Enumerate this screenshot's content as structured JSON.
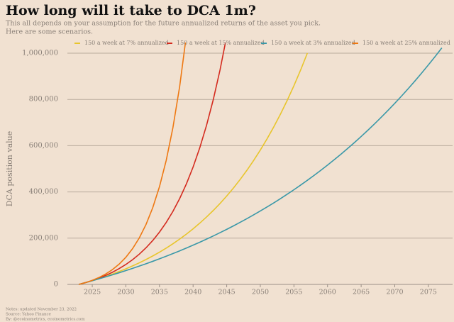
{
  "chart_data": {
    "type": "line",
    "title": "How long will it take to DCA 1m?",
    "subtitle": [
      "This all depends on your assumption for the future annualized returns of the asset you pick.",
      "Here are some scenarios."
    ],
    "y_label": "DCA position value",
    "notes": [
      "Notes: updated November 23, 2022",
      "Source: Yahoo Finance",
      "By: @ecoinometrics, ecoinometrics.com"
    ],
    "x": [
      2023,
      2024,
      2025,
      2026,
      2027,
      2028,
      2029,
      2030,
      2031,
      2032,
      2033,
      2034,
      2035,
      2036,
      2037,
      2038,
      2039,
      2040,
      2041,
      2042,
      2043,
      2044,
      2045,
      2046,
      2047,
      2048,
      2049,
      2050,
      2051,
      2052,
      2053,
      2054,
      2055,
      2056,
      2057,
      2058,
      2059,
      2060,
      2061,
      2062,
      2063,
      2064,
      2065,
      2066,
      2067,
      2068,
      2069,
      2070,
      2071,
      2072,
      2073,
      2074,
      2075,
      2076,
      2077
    ],
    "series": [
      {
        "name": "150 a week at 7% annualized",
        "color": "#e8c52c",
        "values": [
          0,
          7800,
          16146,
          25076,
          34632,
          44856,
          55796,
          67502,
          80028,
          93428,
          107768,
          123111,
          139528,
          157095,
          175891,
          195999,
          217528,
          240558,
          265201,
          291571,
          319784,
          349970,
          382269,
          416825,
          453818,
          493378,
          535717,
          581024,
          629460,
          681326,
          736716,
          796077,
          859497,
          927566,
          1000417,
          null,
          null,
          null,
          null,
          null,
          null,
          null,
          null,
          null,
          null,
          null,
          null,
          null,
          null,
          null,
          null,
          null,
          null,
          null,
          null
        ]
      },
      {
        "name": "150 a week at 15% annualized",
        "color": "#d42a1e",
        "values": [
          0,
          7800,
          16770,
          27087,
          38948,
          52593,
          68281,
          86320,
          107068,
          130931,
          158371,
          189925,
          226216,
          267946,
          315936,
          371129,
          434595,
          507588,
          591526,
          688054,
          799058,
          926718,
          1073524,
          null,
          null,
          null,
          null,
          null,
          null,
          null,
          null,
          null,
          null,
          null,
          null,
          null,
          null,
          null,
          null,
          null,
          null,
          null,
          null,
          null,
          null,
          null,
          null,
          null,
          null,
          null,
          null,
          null,
          null,
          null,
          null
        ]
      },
      {
        "name": "150 a week at 3% annualized",
        "color": "#3a98a8",
        "values": [
          0,
          7800,
          15834,
          24102,
          32630,
          41418,
          50466,
          59774,
          69368,
          79248,
          89414,
          99892,
          110708,
          121810,
          133276,
          145080,
          157222,
          169728,
          182624,
          195910,
          209586,
          223678,
          238186,
          253136,
          268528,
          284388,
          300716,
          317538,
          334854,
          352716,
          371098,
          390026,
          409526,
          429598,
          450294,
          471614,
          493558,
          516152,
          539448,
          563420,
          588120,
          613574,
          639782,
          666770,
          694590,
          723216,
          752700,
          783094,
          814398,
          846612,
          879814,
          914004,
          949234,
          985504,
          1022866
        ]
      },
      {
        "name": "150 a week at 25% annualized",
        "color": "#ee7812",
        "values": [
          0,
          7800,
          17550,
          29740,
          44970,
          63960,
          87760,
          117550,
          154750,
          201300,
          259400,
          332030,
          422830,
          536330,
          678200,
          855570,
          1077240,
          null,
          null,
          null,
          null,
          null,
          null,
          null,
          null,
          null,
          null,
          null,
          null,
          null,
          null,
          null,
          null,
          null,
          null,
          null,
          null,
          null,
          null,
          null,
          null,
          null,
          null,
          null,
          null,
          null,
          null,
          null,
          null,
          null,
          null,
          null,
          null,
          null,
          null
        ]
      }
    ],
    "xlim": [
      2021.3,
      2078.6
    ],
    "ylim": [
      0,
      1000000
    ],
    "xticks": [
      2025,
      2030,
      2035,
      2040,
      2045,
      2050,
      2055,
      2060,
      2065,
      2070,
      2075
    ],
    "yticks": [
      0,
      {
        "value": 200000,
        "label": "200,000"
      },
      {
        "value": 400000,
        "label": "400,000"
      },
      {
        "value": 600000,
        "label": "600,000"
      },
      {
        "value": 800000,
        "label": "800,000"
      },
      {
        "value": 1000000,
        "label": "1,000,000"
      }
    ],
    "grid": true,
    "legend": "top"
  }
}
